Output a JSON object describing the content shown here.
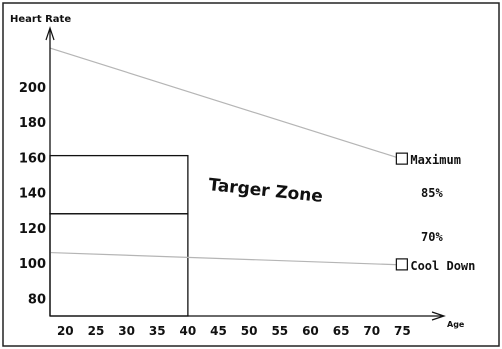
{
  "chart_data": {
    "type": "line",
    "ylabel": "Heart Rate",
    "xlabel": "Age",
    "x_ticks": [
      20,
      25,
      30,
      35,
      40,
      45,
      50,
      55,
      60,
      65,
      70,
      75
    ],
    "y_ticks": [
      80,
      100,
      120,
      140,
      160,
      180,
      200
    ],
    "xlim": [
      17.5,
      80
    ],
    "ylim": [
      70,
      230
    ],
    "grid": false,
    "series": [
      {
        "name": "Maximum",
        "x": [
          17.5,
          75
        ],
        "y": [
          222,
          159
        ]
      },
      {
        "name": "Cool Down",
        "x": [
          17.5,
          75
        ],
        "y": [
          106,
          99
        ]
      }
    ],
    "target_zone": {
      "label": "Targer Zone",
      "x": [
        17.5,
        40
      ],
      "y_low": [
        70,
        128
      ],
      "y_high": [
        128,
        161
      ]
    },
    "annotations": [
      "85%",
      "70%"
    ],
    "line_color": "#b5b5b5"
  }
}
